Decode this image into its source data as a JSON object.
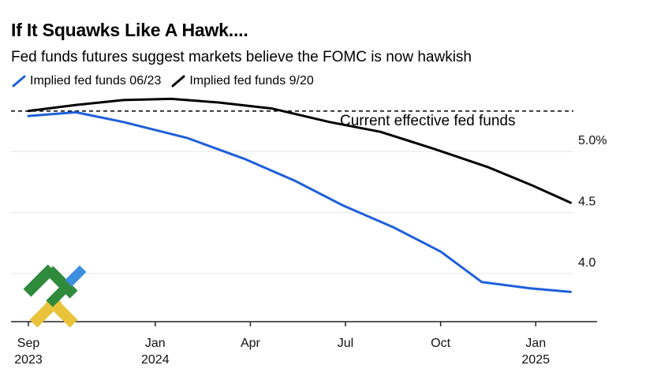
{
  "header": {
    "title": "If It Squawks Like A Hawk....",
    "subtitle": "Fed funds futures suggest markets believe the FOMC is now hawkish"
  },
  "legend": [
    {
      "label": "Implied fed funds 06/23",
      "color": "#1f5fdb"
    },
    {
      "label": "Implied fed funds 9/20",
      "color": "#000000"
    }
  ],
  "colors": {
    "grid": "#e6e6e6",
    "axis": "#222222",
    "reference": "#000000"
  },
  "logo": {
    "icon": "brand-logo-icon"
  },
  "chart_data": {
    "type": "line",
    "title": "If It Squawks Like A Hawk....",
    "subtitle": "Fed funds futures suggest markets believe the FOMC is now hawkish",
    "x_ticks": [
      {
        "index": 0,
        "label_top": "Sep",
        "label_bottom": "2023"
      },
      {
        "index": 4,
        "label_top": "Jan",
        "label_bottom": "2024"
      },
      {
        "index": 7,
        "label_top": "Apr",
        "label_bottom": ""
      },
      {
        "index": 10,
        "label_top": "Jul",
        "label_bottom": ""
      },
      {
        "index": 13,
        "label_top": "Oct",
        "label_bottom": ""
      },
      {
        "index": 16,
        "label_top": "Jan",
        "label_bottom": "2025"
      }
    ],
    "y_ticks": [
      {
        "value": 5.0,
        "label": "5.0%"
      },
      {
        "value": 4.5,
        "label": "4.5"
      },
      {
        "value": 4.0,
        "label": "4.0"
      }
    ],
    "ylim": [
      3.6,
      5.35
    ],
    "xlim": [
      -0.3,
      18.8
    ],
    "grid": true,
    "legend_position": "top-left",
    "reference_line": {
      "value": 5.33,
      "label": "Current effective fed funds"
    },
    "series": [
      {
        "name": "Implied fed funds 06/23",
        "color": "#1f5fdb",
        "points": [
          [
            0,
            5.29
          ],
          [
            1.5,
            5.32
          ],
          [
            3,
            5.24
          ],
          [
            5,
            5.11
          ],
          [
            6.8,
            4.94
          ],
          [
            8.4,
            4.76
          ],
          [
            9.9,
            4.56
          ],
          [
            11.5,
            4.38
          ],
          [
            13,
            4.18
          ],
          [
            14.3,
            3.93
          ],
          [
            15.8,
            3.88
          ],
          [
            17.1,
            3.85
          ]
        ]
      },
      {
        "name": "Implied fed funds 9/20",
        "color": "#000000",
        "points": [
          [
            0,
            5.33
          ],
          [
            1.5,
            5.38
          ],
          [
            3,
            5.42
          ],
          [
            4.5,
            5.43
          ],
          [
            6,
            5.4
          ],
          [
            7.7,
            5.35
          ],
          [
            9.5,
            5.24
          ],
          [
            11.1,
            5.16
          ],
          [
            12.8,
            5.02
          ],
          [
            14.5,
            4.87
          ],
          [
            15.9,
            4.72
          ],
          [
            17.1,
            4.58
          ]
        ]
      }
    ]
  }
}
